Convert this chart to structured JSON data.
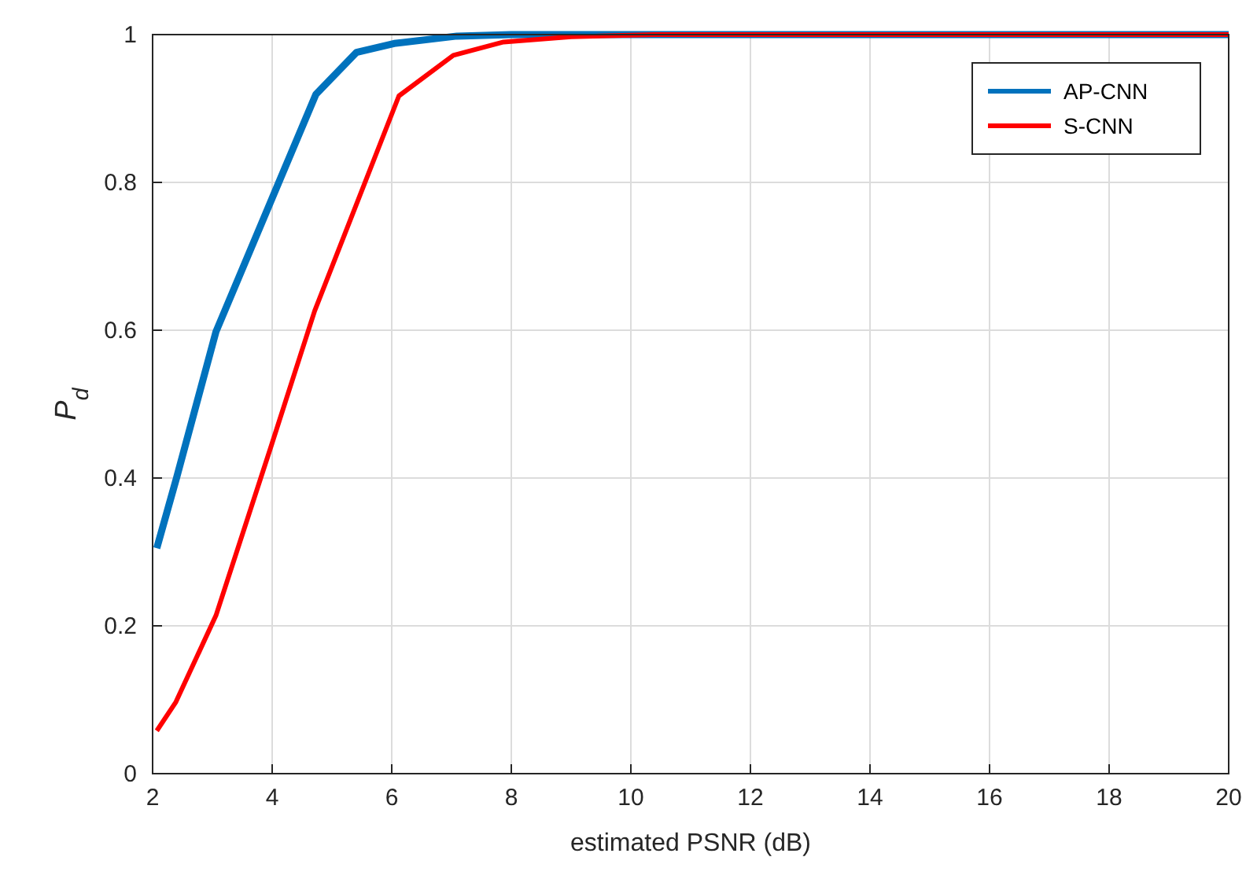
{
  "chart_data": {
    "type": "line",
    "xlabel": "estimated PSNR (dB)",
    "ylabel": "P$_{d}$",
    "xlim": [
      2,
      20
    ],
    "ylim": [
      0,
      1
    ],
    "xticks": [
      2,
      4,
      6,
      8,
      10,
      12,
      14,
      16,
      18,
      20
    ],
    "yticks": [
      0,
      0.2,
      0.4,
      0.6,
      0.8,
      1
    ],
    "grid": true,
    "legend": "top right",
    "line_style": "solid",
    "marker": "none",
    "series": [
      {
        "name": "AP-CNN",
        "color": "#0072bd",
        "x": [
          2.07,
          2.4,
          3.06,
          4.73,
          5.41,
          6.04,
          7.09,
          8,
          10,
          20
        ],
        "values": [
          0.305,
          0.4,
          0.598,
          0.919,
          0.976,
          0.988,
          0.998,
          1,
          1,
          1
        ]
      },
      {
        "name": "S-CNN",
        "color": "#ff0000",
        "x": [
          2.07,
          2.39,
          3.06,
          3.99,
          4.71,
          6.12,
          7.03,
          7.87,
          9,
          10.4,
          20
        ],
        "values": [
          0.058,
          0.097,
          0.214,
          0.445,
          0.626,
          0.917,
          0.972,
          0.99,
          0.997,
          1,
          1
        ]
      }
    ]
  }
}
